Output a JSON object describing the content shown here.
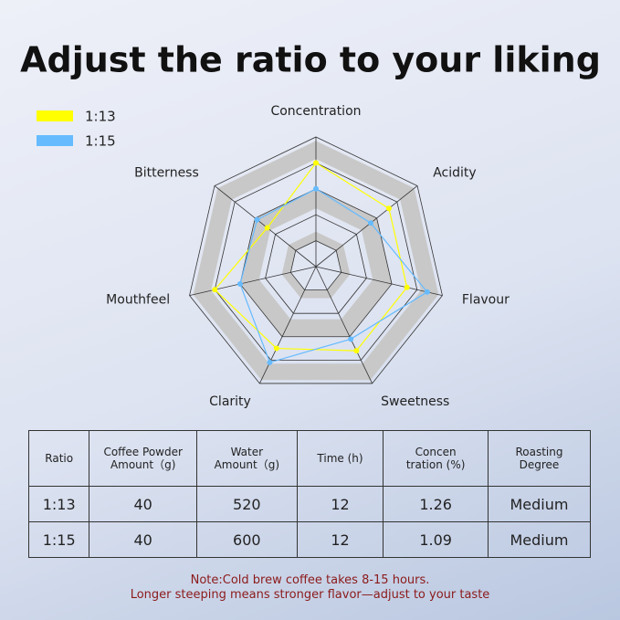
{
  "chart_data": {
    "type": "radar",
    "title": "Adjust the ratio to your liking",
    "categories": [
      "Concentration",
      "Acidity",
      "Flavour",
      "Sweetness",
      "Clarity",
      "Mouthfeel",
      "Bitterness"
    ],
    "rlim": [
      0,
      5
    ],
    "series": [
      {
        "name": "1:13",
        "color": "#ffff00",
        "values": [
          4,
          3.6,
          3.6,
          3.6,
          3.5,
          4,
          2.4
        ]
      },
      {
        "name": "1:15",
        "color": "#66bbff",
        "values": [
          3,
          2.7,
          4.4,
          3.1,
          4.1,
          3,
          2.9
        ]
      }
    ],
    "legend": "top-left"
  },
  "table": {
    "header": [
      [
        "Ratio"
      ],
      [
        "Coffee Powder",
        "Amount（g)"
      ],
      [
        "Water",
        "Amount（g)"
      ],
      [
        "Time (h)"
      ],
      [
        "Concen",
        "tration (%)"
      ],
      [
        "Roasting",
        "Degree"
      ]
    ],
    "rows": [
      [
        "1:13",
        "40",
        "520",
        "12",
        "1.26",
        "Medium"
      ],
      [
        "1:15",
        "40",
        "600",
        "12",
        "1.09",
        "Medium"
      ]
    ]
  },
  "note": [
    "Note:Cold brew coffee takes 8-15 hours.",
    "Longer steeping means stronger flavor—adjust to your taste"
  ]
}
